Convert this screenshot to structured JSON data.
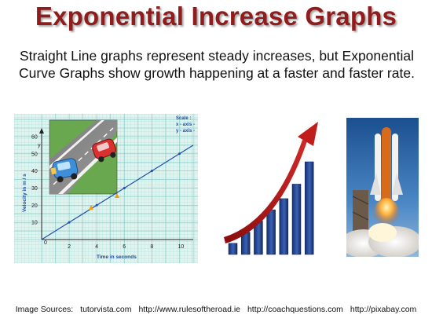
{
  "slide": {
    "title": "Exponential Increase Graphs",
    "subtitle_line1": "Straight Line graphs represent steady increases, but Exponential",
    "subtitle_line2": "Curve Graphs show growth happening at a faster and faster rate."
  },
  "velocity_graph": {
    "y_axis_letter": "y",
    "y_axis_label": "Velocity in m / s",
    "x_axis_label": "Time in seconds",
    "scale_title": "Scale :",
    "scale_x": "x - axis -",
    "scale_y": "y - axis -",
    "origin_label": "0",
    "chart_data": {
      "type": "line",
      "x_ticks": [
        "2",
        "4",
        "6",
        "8",
        "10"
      ],
      "y_ticks": [
        "10",
        "20",
        "30",
        "40",
        "50",
        "60"
      ],
      "series": [
        {
          "x": [
            0,
            2,
            4,
            6,
            8,
            10,
            11
          ],
          "y": [
            0,
            10,
            20,
            30,
            40,
            50,
            55
          ]
        }
      ],
      "xlim": [
        0,
        11
      ],
      "ylim": [
        0,
        65
      ],
      "grid": true
    }
  },
  "bar_growth": {
    "chart_data": {
      "type": "bar",
      "values": [
        1,
        2,
        3,
        4,
        5,
        6.3,
        8.3
      ]
    },
    "colors": {
      "bar": "#1f3a7a",
      "arrow": "#b01818"
    }
  },
  "sources": {
    "label": "Image Sources:",
    "items": [
      "tutorvista.com",
      "http://www.rulesoftheroad.ie",
      "http://coachquestions.com",
      "http://pixabay.com"
    ]
  }
}
